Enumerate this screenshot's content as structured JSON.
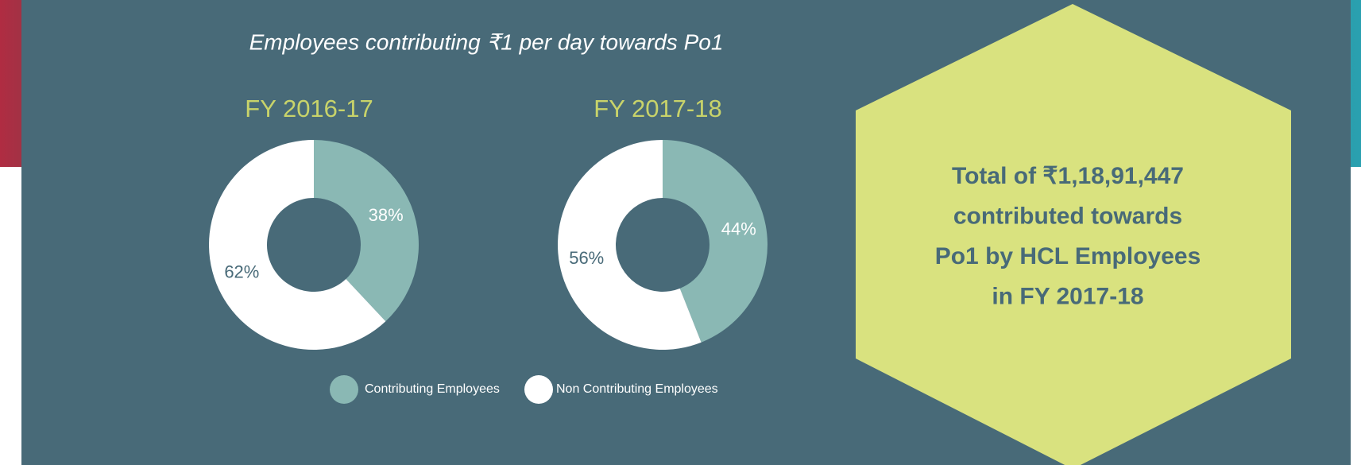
{
  "title": "Employees contributing ₹1 per day towards Po1",
  "chart_data": [
    {
      "type": "pie",
      "title": "FY 2016-17",
      "categories": [
        "Contributing Employees",
        "Non Contributing Employees"
      ],
      "values": [
        38,
        62
      ],
      "value_labels": [
        "38%",
        "62%"
      ],
      "colors": [
        "#8ab8b4",
        "#ffffff"
      ],
      "label_colors": [
        "#ffffff",
        "#486a78"
      ],
      "donut": true
    },
    {
      "type": "pie",
      "title": "FY 2017-18",
      "categories": [
        "Contributing Employees",
        "Non Contributing Employees"
      ],
      "values": [
        44,
        56
      ],
      "value_labels": [
        "44%",
        "56%"
      ],
      "colors": [
        "#8ab8b4",
        "#ffffff"
      ],
      "label_colors": [
        "#ffffff",
        "#486a78"
      ],
      "donut": true
    }
  ],
  "callout": {
    "lines": [
      "Total of ₹1,18,91,447",
      "contributed towards",
      "Po1 by HCL Employees",
      "in FY 2017-18"
    ]
  }
}
